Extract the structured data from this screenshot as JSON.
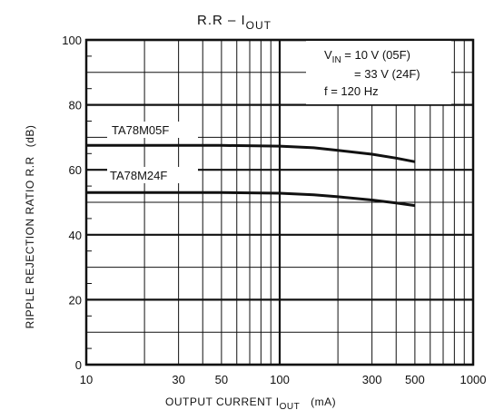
{
  "chart_data": {
    "type": "line",
    "title": {
      "main": "R.R  –  I",
      "sub": "OUT"
    },
    "xlabel": {
      "main": "OUTPUT CURRENT   I",
      "sub": "OUT",
      "unit": "(mA)"
    },
    "ylabel": {
      "main": "RIPPLE REJECTION RATIO   R.R",
      "unit": "(dB)"
    },
    "xscale": "log",
    "xlim": [
      10,
      1000
    ],
    "ylim": [
      0,
      100
    ],
    "xticks": [
      {
        "value": 10,
        "label": "10"
      },
      {
        "value": 30,
        "label": "30"
      },
      {
        "value": 50,
        "label": "50"
      },
      {
        "value": 100,
        "label": "100"
      },
      {
        "value": 300,
        "label": "300"
      },
      {
        "value": 500,
        "label": "500"
      },
      {
        "value": 1000,
        "label": "1000"
      }
    ],
    "yticks": [
      {
        "value": 0,
        "label": "0"
      },
      {
        "value": 20,
        "label": "20"
      },
      {
        "value": 40,
        "label": "40"
      },
      {
        "value": 60,
        "label": "60"
      },
      {
        "value": 80,
        "label": "80"
      },
      {
        "value": 100,
        "label": "100"
      }
    ],
    "grid": true,
    "series": [
      {
        "name": "TA78M05F",
        "x": [
          10,
          30,
          50,
          100,
          150,
          200,
          300,
          400,
          500
        ],
        "y": [
          67.5,
          67.5,
          67.5,
          67.3,
          66.8,
          66.0,
          64.8,
          63.6,
          62.5
        ]
      },
      {
        "name": "TA78M24F",
        "x": [
          10,
          30,
          50,
          100,
          150,
          200,
          300,
          400,
          500
        ],
        "y": [
          53.0,
          53.0,
          53.0,
          52.8,
          52.3,
          51.7,
          50.7,
          49.8,
          49.0
        ]
      }
    ],
    "conditions": [
      {
        "main": "V",
        "sub": "IN",
        "rest": " = 10 V (05F)"
      },
      {
        "main": "",
        "sub": "",
        "rest": "= 33 V (24F)"
      },
      {
        "main": "f = 120 Hz",
        "sub": "",
        "rest": ""
      }
    ],
    "colors": {
      "line": "#111111",
      "grid": "#111111",
      "background": "#ffffff"
    }
  }
}
